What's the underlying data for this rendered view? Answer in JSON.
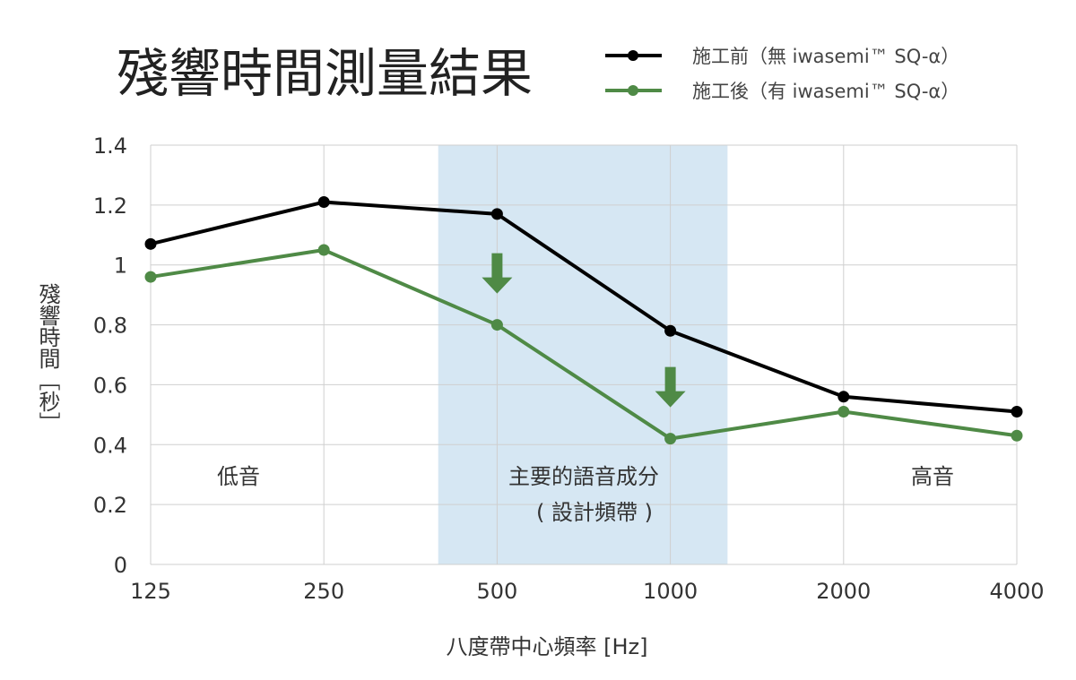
{
  "chart_data": {
    "type": "line",
    "title": "殘響時間測量結果",
    "xlabel": "八度帶中心頻率 [Hz]",
    "ylabel": "殘響時間［秒］",
    "categories": [
      "125",
      "250",
      "500",
      "1000",
      "2000",
      "4000"
    ],
    "ylim": [
      0,
      1.4
    ],
    "yticks": [
      "0",
      "0.2",
      "0.4",
      "0.6",
      "0.8",
      "1",
      "1.2",
      "1.4"
    ],
    "grid": true,
    "legend_position": "top-right",
    "series": [
      {
        "name": "施工前（無 iwasemi™ SQ-α）",
        "color": "#000000",
        "values": [
          1.07,
          1.21,
          1.17,
          0.78,
          0.56,
          0.51
        ]
      },
      {
        "name": "施工後（有 iwasemi™ SQ-α）",
        "color": "#4f8a46",
        "values": [
          0.96,
          1.05,
          0.8,
          0.42,
          0.51,
          0.43
        ]
      }
    ],
    "highlight_band": {
      "from_category": "500",
      "to_category": "1000",
      "color": "#d6e7f3"
    },
    "annotations": {
      "low": "低音",
      "mid_line1": "主要的語音成分",
      "mid_line2": "( 設計頻帶 )",
      "high": "高音"
    },
    "arrow_color": "#4f8a46",
    "arrows_at": [
      "500",
      "1000"
    ]
  }
}
